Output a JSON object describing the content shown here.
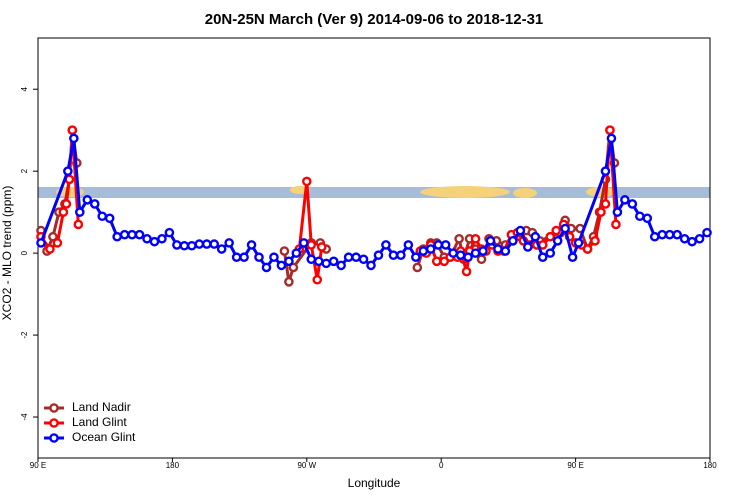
{
  "chart_data": {
    "type": "line",
    "title": "20N-25N March (Ver 9)   2014-09-06 to 2018-12-31",
    "x_label": "Longitude",
    "y_label": "XCO2 - MLO trend (ppm)",
    "xlim": [
      90,
      540
    ],
    "xticks": [
      {
        "value": 90,
        "label": "90 E"
      },
      180,
      {
        "value": 270,
        "label": "90 W"
      },
      {
        "value": 360,
        "label": "0"
      },
      {
        "value": 450,
        "label": "90 E"
      },
      {
        "value": 540,
        "label": "180"
      }
    ],
    "ylim": [
      -5.0,
      5.25
    ],
    "yticks": [
      -4,
      -2,
      0,
      2,
      4
    ],
    "legend": "bottom-left",
    "series": [
      {
        "name": "Land Nadir",
        "color": "#a52a2a",
        "x": [
          92,
          96,
          100,
          104,
          108,
          111,
          113,
          116,
          185,
          255,
          258,
          261,
          273,
          279,
          283,
          310,
          344,
          348,
          353,
          357,
          362,
          366,
          372,
          375,
          379,
          383,
          387,
          392,
          397,
          403,
          408,
          413,
          417,
          421,
          426,
          440,
          443,
          447,
          453,
          458,
          462,
          466,
          470,
          473,
          476
        ],
        "values": [
          0.55,
          0.05,
          0.4,
          1.0,
          1.2,
          1.8,
          3.0,
          2.2,
          null,
          0.05,
          -0.7,
          -0.35,
          0.25,
          0.25,
          0.1,
          null,
          -0.35,
          0.1,
          0.25,
          0.25,
          -0.1,
          -0.1,
          0.35,
          -0.15,
          0.35,
          0.1,
          -0.15,
          0.35,
          0.3,
          0.2,
          0.3,
          0.4,
          0.55,
          0.5,
          0.3,
          0.5,
          0.8,
          0.6,
          0.6,
          0.1,
          0.4,
          1.0,
          1.8,
          3.0,
          2.2
        ]
      },
      {
        "name": "Land Glint",
        "color": "#ff0000",
        "x": [
          92,
          98,
          103,
          107,
          109,
          111,
          113,
          117,
          190,
          265,
          270,
          273,
          277,
          280,
          310,
          346,
          350,
          353,
          357,
          362,
          366,
          371,
          373,
          377,
          379,
          383,
          387,
          390,
          394,
          398,
          402,
          407,
          411,
          415,
          419,
          424,
          428,
          433,
          437,
          442,
          446,
          450,
          454,
          458,
          463,
          467,
          470,
          473,
          477
        ],
        "values": [
          0.4,
          0.1,
          0.25,
          1.0,
          1.2,
          1.8,
          3.0,
          0.7,
          null,
          0.1,
          1.75,
          0.2,
          -0.65,
          0.15,
          null,
          0.05,
          0.0,
          0.2,
          -0.2,
          -0.2,
          -0.1,
          -0.1,
          0.05,
          -0.45,
          0.05,
          0.35,
          0.1,
          0.05,
          0.2,
          0.05,
          0.05,
          0.45,
          0.5,
          0.3,
          0.2,
          0.2,
          0.2,
          0.4,
          0.55,
          0.7,
          0.4,
          0.25,
          0.2,
          0.1,
          0.3,
          1.0,
          1.2,
          3.0,
          0.7
        ]
      },
      {
        "name": "Ocean Glint",
        "color": "#0000ff",
        "x": [
          92,
          110,
          114,
          118,
          123,
          128,
          133,
          138,
          143,
          148,
          153,
          158,
          163,
          168,
          173,
          178,
          183,
          188,
          193,
          198,
          203,
          208,
          213,
          218,
          223,
          228,
          233,
          238,
          243,
          248,
          253,
          258,
          263,
          268,
          273,
          278,
          283,
          288,
          293,
          298,
          303,
          308,
          313,
          318,
          323,
          328,
          333,
          338,
          343,
          348,
          353,
          358,
          363,
          368,
          373,
          378,
          383,
          388,
          393,
          398,
          403,
          408,
          413,
          418,
          423,
          428,
          433,
          438,
          443,
          448,
          452,
          470,
          474,
          478,
          483,
          488,
          493,
          498,
          503,
          508,
          513,
          518,
          523,
          528,
          533,
          538
        ],
        "values": [
          0.25,
          2.0,
          2.8,
          1.0,
          1.3,
          1.2,
          0.9,
          0.85,
          0.4,
          0.45,
          0.45,
          0.45,
          0.35,
          0.28,
          0.35,
          0.5,
          0.2,
          0.18,
          0.18,
          0.22,
          0.22,
          0.22,
          0.1,
          0.25,
          -0.1,
          -0.1,
          0.2,
          -0.1,
          -0.35,
          -0.1,
          -0.3,
          -0.2,
          0.0,
          0.25,
          -0.15,
          -0.2,
          -0.25,
          -0.2,
          -0.3,
          -0.1,
          -0.1,
          -0.15,
          -0.3,
          -0.05,
          0.2,
          -0.05,
          -0.05,
          0.2,
          -0.1,
          0.05,
          0.1,
          0.2,
          0.2,
          0.0,
          -0.05,
          -0.1,
          0.0,
          0.05,
          0.3,
          0.1,
          0.05,
          0.3,
          0.55,
          0.15,
          0.4,
          -0.1,
          0.0,
          0.3,
          0.6,
          -0.1,
          0.25,
          2.0,
          2.8,
          1.0,
          1.3,
          1.2,
          0.9,
          0.85,
          0.4,
          0.45,
          0.45,
          0.45,
          0.35,
          0.28,
          0.35,
          0.5
        ]
      }
    ]
  }
}
